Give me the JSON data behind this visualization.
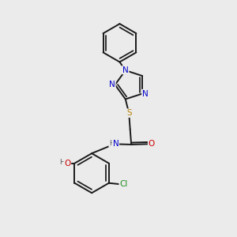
{
  "background_color": "#ebebeb",
  "bond_color": "#1a1a1a",
  "N_color": "#0000cc",
  "O_color": "#cc0000",
  "S_color": "#b8860b",
  "Cl_color": "#228b22",
  "figsize": [
    3.0,
    3.0
  ],
  "dpi": 100,
  "xlim": [
    0,
    10
  ],
  "ylim": [
    0,
    10
  ]
}
